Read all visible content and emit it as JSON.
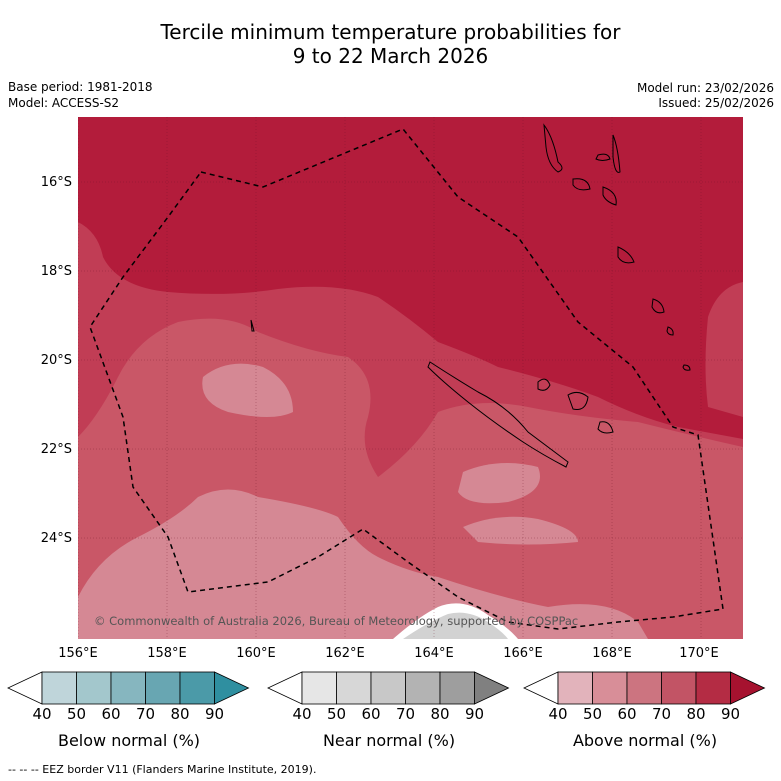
{
  "title_line1": "Tercile minimum temperature probabilities for",
  "title_line2": "9 to 22 March 2026",
  "base_period": "Base period: 1981-2018",
  "model": "Model: ACCESS-S2",
  "model_run": "Model run: 23/02/2026",
  "issued": "Issued: 25/02/2026",
  "lat_labels": [
    "16°S",
    "18°S",
    "20°S",
    "22°S",
    "24°S"
  ],
  "lon_labels": [
    "156°E",
    "158°E",
    "160°E",
    "162°E",
    "164°E",
    "166°E",
    "168°E",
    "170°E"
  ],
  "copyright": "© Commonwealth of Australia 2026, Bureau of Meteorology, supported by COSPPac",
  "colorbars": [
    {
      "label": "Below normal (%)",
      "ticks": [
        "40",
        "50",
        "60",
        "70",
        "80",
        "90"
      ],
      "colors": [
        "#ffffff",
        "#bfd5da",
        "#a3c7cc",
        "#86b6bf",
        "#68a6b2",
        "#4b9aa8",
        "#2f8fa0"
      ]
    },
    {
      "label": "Near normal (%)",
      "ticks": [
        "40",
        "50",
        "60",
        "70",
        "80",
        "90"
      ],
      "colors": [
        "#ffffff",
        "#e6e6e6",
        "#d7d7d7",
        "#c8c8c8",
        "#b3b3b3",
        "#9e9e9e",
        "#808080"
      ]
    },
    {
      "label": "Above normal (%)",
      "ticks": [
        "40",
        "50",
        "60",
        "70",
        "80",
        "90"
      ],
      "colors": [
        "#ffffff",
        "#e2b3bb",
        "#d88e98",
        "#cc7480",
        "#c25465",
        "#b42c44",
        "#a6122f"
      ]
    }
  ],
  "footer": "--  --  -- EEZ border V11 (Flanders Marine Institute, 2019)."
}
